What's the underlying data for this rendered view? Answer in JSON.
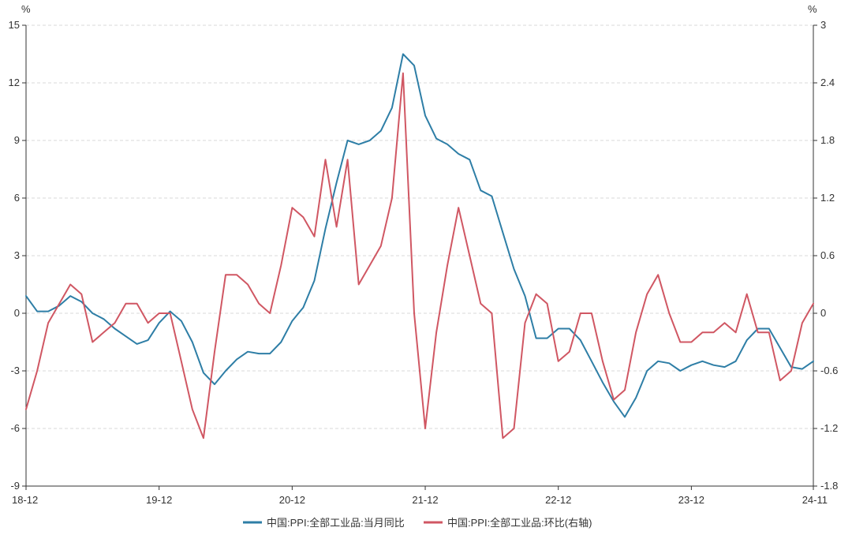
{
  "chart_data": {
    "type": "line",
    "left_unit": "%",
    "right_unit": "%",
    "left_axis": {
      "min": -9,
      "max": 15,
      "ticks": [
        15,
        12,
        9,
        6,
        3,
        0,
        -3,
        -6,
        -9
      ]
    },
    "right_axis": {
      "min": -1.8,
      "max": 3,
      "ticks": [
        "3",
        "2.4",
        "1.8",
        "1.2",
        "0.6",
        "0",
        "-0.6",
        "-1.2",
        "-1.8"
      ]
    },
    "x_ticks": [
      {
        "index": 0,
        "label": "18-12"
      },
      {
        "index": 12,
        "label": "19-12"
      },
      {
        "index": 24,
        "label": "20-12"
      },
      {
        "index": 36,
        "label": "21-12"
      },
      {
        "index": 48,
        "label": "22-12"
      },
      {
        "index": 60,
        "label": "23-12"
      },
      {
        "index": 71,
        "label": "24-11"
      }
    ],
    "grid": "horizontal dashed",
    "legend_position": "bottom",
    "series": [
      {
        "name": "中国:PPI:全部工业品:当月同比",
        "axis": "left",
        "color": "#2e7ea6",
        "values": [
          0.9,
          0.1,
          0.1,
          0.4,
          0.9,
          0.6,
          0.0,
          -0.3,
          -0.8,
          -1.2,
          -1.6,
          -1.4,
          -0.5,
          0.1,
          -0.4,
          -1.5,
          -3.1,
          -3.7,
          -3.0,
          -2.4,
          -2.0,
          -2.1,
          -2.1,
          -1.5,
          -0.4,
          0.3,
          1.7,
          4.4,
          6.8,
          9.0,
          8.8,
          9.0,
          9.5,
          10.7,
          13.5,
          12.9,
          10.3,
          9.1,
          8.8,
          8.3,
          8.0,
          6.4,
          6.1,
          4.2,
          2.3,
          0.9,
          -1.3,
          -1.3,
          -0.8,
          -0.8,
          -1.4,
          -2.5,
          -3.6,
          -4.6,
          -5.4,
          -4.4,
          -3.0,
          -2.5,
          -2.6,
          -3.0,
          -2.7,
          -2.5,
          -2.7,
          -2.8,
          -2.5,
          -1.4,
          -0.8,
          -0.8,
          -1.8,
          -2.8,
          -2.9,
          -2.5
        ]
      },
      {
        "name": "中国:PPI:全部工业品:环比(右轴)",
        "axis": "right",
        "color": "#d05763",
        "values": [
          -1.0,
          -0.6,
          -0.1,
          0.1,
          0.3,
          0.2,
          -0.3,
          -0.2,
          -0.1,
          0.1,
          0.1,
          -0.1,
          0.0,
          0.0,
          -0.5,
          -1.0,
          -1.3,
          -0.4,
          0.4,
          0.4,
          0.3,
          0.1,
          0.0,
          0.5,
          1.1,
          1.0,
          0.8,
          1.6,
          0.9,
          1.6,
          0.3,
          0.5,
          0.7,
          1.2,
          2.5,
          0.0,
          -1.2,
          -0.2,
          0.5,
          1.1,
          0.6,
          0.1,
          0.0,
          -1.3,
          -1.2,
          -0.1,
          0.2,
          0.1,
          -0.5,
          -0.4,
          0.0,
          0.0,
          -0.5,
          -0.9,
          -0.8,
          -0.2,
          0.2,
          0.4,
          0.0,
          -0.3,
          -0.3,
          -0.2,
          -0.2,
          -0.1,
          -0.2,
          0.2,
          -0.2,
          -0.2,
          -0.7,
          -0.6,
          -0.1,
          0.1
        ]
      }
    ]
  }
}
